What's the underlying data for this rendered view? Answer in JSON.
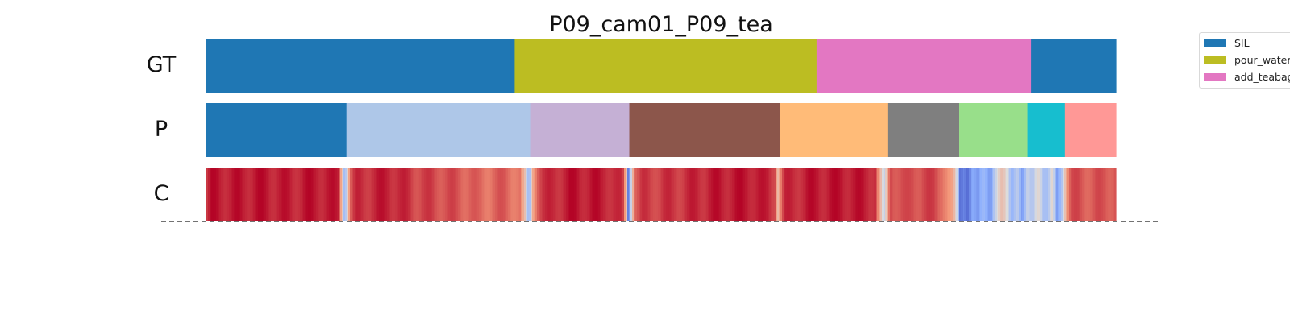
{
  "chart_data": {
    "type": "segmentation-timeline",
    "title": "P09_cam01_P09_tea",
    "row_labels": [
      "GT",
      "P",
      "C"
    ],
    "x_range": [
      0,
      1
    ],
    "ground_truth": [
      {
        "label": "SIL",
        "start": 0.0,
        "end": 0.339,
        "color": "#1f77b4"
      },
      {
        "label": "pour_water",
        "start": 0.339,
        "end": 0.671,
        "color": "#bcbd22"
      },
      {
        "label": "add_teabag",
        "start": 0.671,
        "end": 0.907,
        "color": "#e377c2"
      },
      {
        "label": "SIL",
        "start": 0.907,
        "end": 1.0,
        "color": "#1f77b4"
      }
    ],
    "prediction": [
      {
        "start": 0.0,
        "end": 0.154,
        "color": "#1f77b4"
      },
      {
        "start": 0.154,
        "end": 0.356,
        "color": "#aec7e8"
      },
      {
        "start": 0.356,
        "end": 0.465,
        "color": "#c5b0d5"
      },
      {
        "start": 0.465,
        "end": 0.631,
        "color": "#8c564b"
      },
      {
        "start": 0.631,
        "end": 0.749,
        "color": "#ffbb78"
      },
      {
        "start": 0.749,
        "end": 0.828,
        "color": "#7f7f7f"
      },
      {
        "start": 0.828,
        "end": 0.903,
        "color": "#98df8a"
      },
      {
        "start": 0.903,
        "end": 0.944,
        "color": "#17becf"
      },
      {
        "start": 0.944,
        "end": 1.0,
        "color": "#ff9896"
      }
    ],
    "confidence_colormap": "coolwarm",
    "confidence": [
      [
        0.0,
        0.9
      ],
      [
        0.005,
        0.97
      ],
      [
        0.03,
        0.96
      ],
      [
        0.06,
        0.97
      ],
      [
        0.09,
        0.95
      ],
      [
        0.12,
        0.97
      ],
      [
        0.145,
        0.95
      ],
      [
        0.15,
        0.6
      ],
      [
        0.152,
        0.3
      ],
      [
        0.155,
        0.55
      ],
      [
        0.158,
        0.85
      ],
      [
        0.165,
        0.92
      ],
      [
        0.2,
        0.96
      ],
      [
        0.23,
        0.9
      ],
      [
        0.26,
        0.88
      ],
      [
        0.29,
        0.85
      ],
      [
        0.3,
        0.82
      ],
      [
        0.33,
        0.85
      ],
      [
        0.345,
        0.8
      ],
      [
        0.35,
        0.6
      ],
      [
        0.353,
        0.3
      ],
      [
        0.356,
        0.35
      ],
      [
        0.358,
        0.7
      ],
      [
        0.365,
        0.9
      ],
      [
        0.4,
        0.97
      ],
      [
        0.44,
        0.96
      ],
      [
        0.458,
        0.9
      ],
      [
        0.462,
        0.6
      ],
      [
        0.464,
        0.05
      ],
      [
        0.466,
        0.3
      ],
      [
        0.47,
        0.85
      ],
      [
        0.48,
        0.9
      ],
      [
        0.52,
        0.92
      ],
      [
        0.56,
        0.96
      ],
      [
        0.6,
        0.97
      ],
      [
        0.625,
        0.92
      ],
      [
        0.628,
        0.65
      ],
      [
        0.63,
        0.72
      ],
      [
        0.635,
        0.92
      ],
      [
        0.66,
        0.96
      ],
      [
        0.7,
        0.97
      ],
      [
        0.735,
        0.95
      ],
      [
        0.742,
        0.6
      ],
      [
        0.745,
        0.35
      ],
      [
        0.748,
        0.6
      ],
      [
        0.752,
        0.9
      ],
      [
        0.77,
        0.86
      ],
      [
        0.79,
        0.9
      ],
      [
        0.81,
        0.85
      ],
      [
        0.82,
        0.7
      ],
      [
        0.823,
        0.55
      ],
      [
        0.826,
        0.4
      ],
      [
        0.829,
        0.08
      ],
      [
        0.833,
        0.18
      ],
      [
        0.837,
        0.1
      ],
      [
        0.842,
        0.25
      ],
      [
        0.848,
        0.15
      ],
      [
        0.855,
        0.3
      ],
      [
        0.862,
        0.22
      ],
      [
        0.868,
        0.45
      ],
      [
        0.874,
        0.6
      ],
      [
        0.88,
        0.5
      ],
      [
        0.886,
        0.3
      ],
      [
        0.892,
        0.45
      ],
      [
        0.897,
        0.15
      ],
      [
        0.902,
        0.4
      ],
      [
        0.908,
        0.35
      ],
      [
        0.915,
        0.6
      ],
      [
        0.92,
        0.35
      ],
      [
        0.925,
        0.3
      ],
      [
        0.93,
        0.5
      ],
      [
        0.935,
        0.2
      ],
      [
        0.94,
        0.35
      ],
      [
        0.945,
        0.7
      ],
      [
        0.95,
        0.85
      ],
      [
        0.96,
        0.88
      ],
      [
        0.975,
        0.85
      ],
      [
        0.99,
        0.87
      ],
      [
        1.0,
        0.88
      ]
    ],
    "legend": {
      "placement": "upper-right",
      "entries": [
        {
          "label": "SIL",
          "color": "#1f77b4"
        },
        {
          "label": "pour_water",
          "color": "#bcbd22"
        },
        {
          "label": "add_teabag",
          "color": "#e377c2"
        }
      ]
    }
  }
}
